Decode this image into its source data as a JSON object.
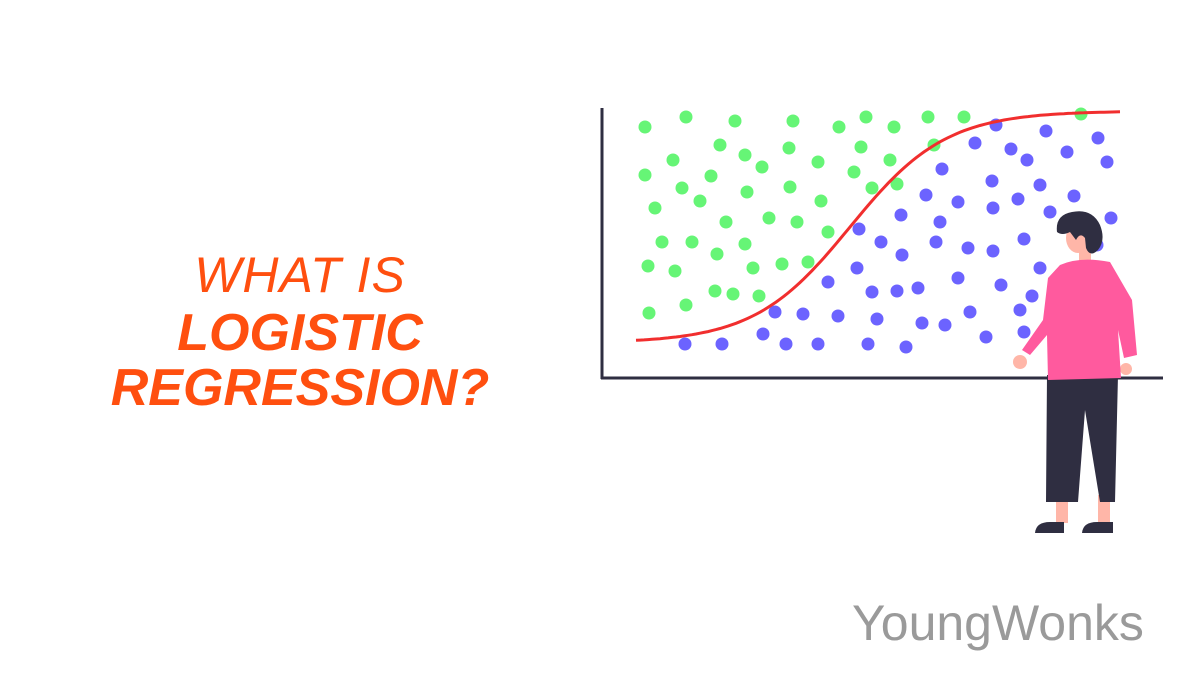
{
  "title": {
    "line1": "WHAT IS",
    "line2": "LOGISTIC",
    "line3": "REGRESSION?"
  },
  "logo": {
    "text": "YoungWonks"
  },
  "colors": {
    "title": "#ff4f0f",
    "green_points": "#66f576",
    "blue_points": "#6c63ff",
    "curve": "#f12e2e",
    "axis": "#2f2e41",
    "shirt": "#ff5a9e",
    "skin": "#ffb6a8",
    "logo": "#9a9a9a"
  },
  "illustration": {
    "icon": "person-looking-at-sigmoid-scatter-chart"
  }
}
